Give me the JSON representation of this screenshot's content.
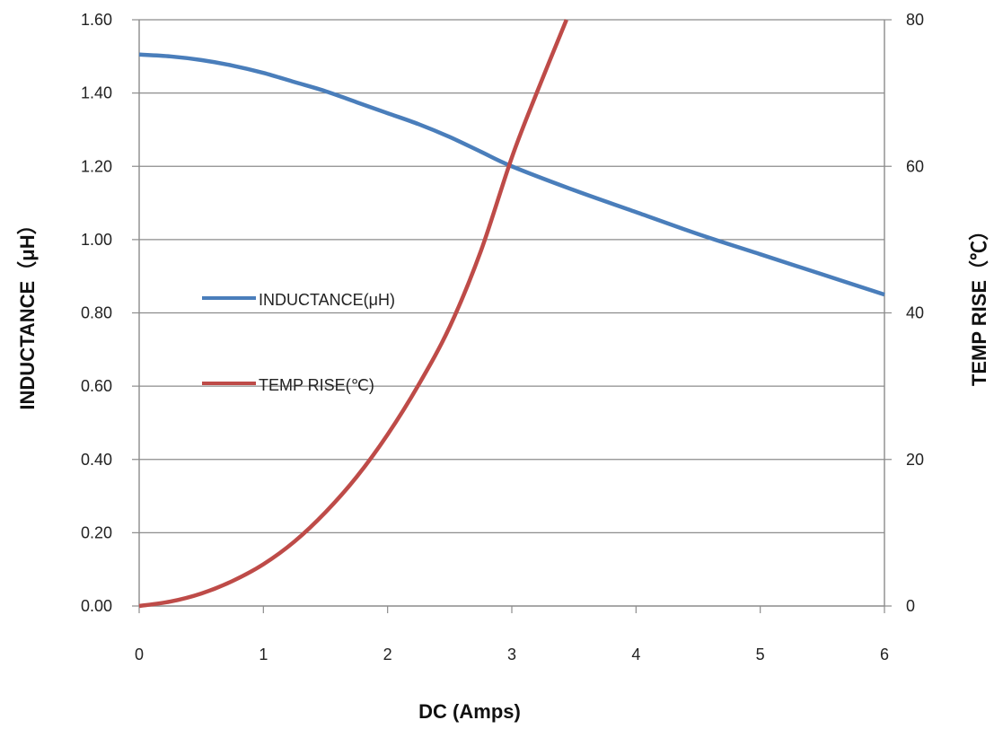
{
  "chart_data": {
    "type": "line",
    "xlabel": "DC (Amps)",
    "ylabel_left": "INDUCTANCE（μH）",
    "ylabel_right": "TEMP RISE（℃）",
    "xlim": [
      0,
      6
    ],
    "ylim_left": [
      0,
      1.6
    ],
    "ylim_right": [
      0,
      80
    ],
    "x_ticks": [
      "0",
      "1",
      "2",
      "3",
      "4",
      "5",
      "6"
    ],
    "y_left_ticks": [
      "0.00",
      "0.20",
      "0.40",
      "0.60",
      "0.80",
      "1.00",
      "1.20",
      "1.40",
      "1.60"
    ],
    "y_right_ticks": [
      "0",
      "20",
      "40",
      "60",
      "80"
    ],
    "grid": "horizontal",
    "legend_position": "center-left",
    "series": [
      {
        "name": "INDUCTANCE(μH)",
        "axis": "left",
        "color": "#4a7ebb",
        "x": [
          0,
          0.25,
          0.5,
          0.75,
          1,
          1.25,
          1.5,
          1.75,
          2,
          2.25,
          2.5,
          2.75,
          3,
          3.5,
          4,
          4.5,
          5,
          5.5,
          6
        ],
        "y": [
          1.505,
          1.5,
          1.49,
          1.475,
          1.455,
          1.43,
          1.405,
          1.375,
          1.345,
          1.315,
          1.28,
          1.24,
          1.2,
          1.135,
          1.075,
          1.015,
          0.96,
          0.905,
          0.85
        ]
      },
      {
        "name": "TEMP RISE(℃)",
        "axis": "right",
        "color": "#be4b48",
        "x": [
          0,
          0.25,
          0.5,
          0.75,
          1,
          1.25,
          1.5,
          1.75,
          2,
          2.25,
          2.5,
          2.75,
          3,
          3.2,
          3.44
        ],
        "y": [
          0,
          0.6,
          1.7,
          3.4,
          5.7,
          8.8,
          12.8,
          17.6,
          23.4,
          30.2,
          38.1,
          48.4,
          61.2,
          70,
          80
        ]
      }
    ]
  }
}
